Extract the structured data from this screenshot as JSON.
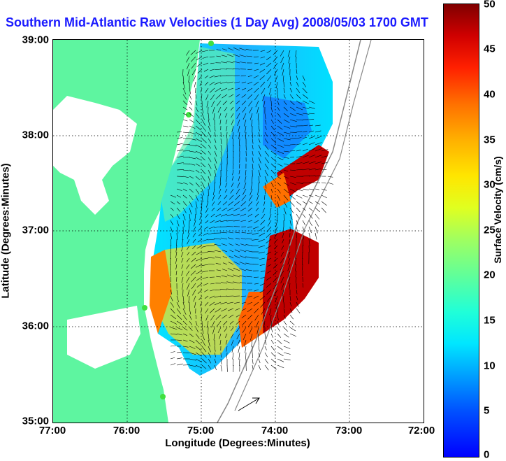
{
  "title": "Southern Mid-Atlantic Raw Velocities (1 Day Avg) 2008/05/03 1700 GMT",
  "axes": {
    "xlabel": "Longitude (Degrees:Minutes)",
    "ylabel": "Latitude (Degrees:Minutes)",
    "x_ticks": [
      "77:00",
      "76:00",
      "75:00",
      "74:00",
      "73:00",
      "72:00"
    ],
    "y_ticks": [
      "39:00",
      "38:00",
      "37:00",
      "36:00",
      "35:00"
    ],
    "x_range_deg_west": [
      77,
      72
    ],
    "y_range_deg_north": [
      35,
      39
    ]
  },
  "colorbar": {
    "label": "Surface Velocity (cm/s)",
    "ticks": [
      "50",
      "45",
      "40",
      "35",
      "30",
      "25",
      "20",
      "15",
      "10",
      "5",
      "0"
    ],
    "range": [
      0,
      50
    ]
  },
  "colors": {
    "land": "#5ef5a0",
    "title": "#1a1aff",
    "water": "#ffffff",
    "station": "#40e040"
  },
  "icons": [
    "station-marker-icon",
    "scale-arrow-icon"
  ]
}
